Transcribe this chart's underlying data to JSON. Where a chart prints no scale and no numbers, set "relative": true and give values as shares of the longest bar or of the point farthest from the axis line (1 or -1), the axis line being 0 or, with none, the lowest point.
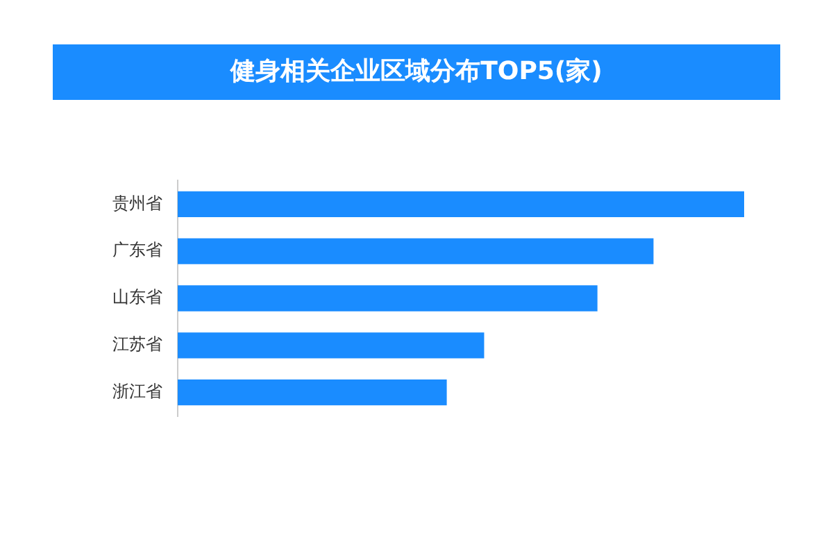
{
  "chart_data": {
    "type": "bar",
    "title": "健身相关企业区域分布TOP5(家)",
    "orientation": "horizontal",
    "relative": true,
    "categories": [
      "贵州省",
      "广东省",
      "山东省",
      "江苏省",
      "浙江省"
    ],
    "values": [
      1,
      0.84,
      0.741,
      0.541,
      0.475
    ],
    "color": "#1a8cff"
  }
}
